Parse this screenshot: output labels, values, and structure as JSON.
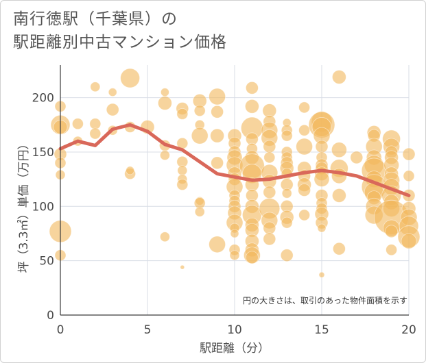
{
  "title": {
    "line1": "南行徳駅（千葉県）の",
    "line2": "駅距離別中古マンション価格"
  },
  "chart_data": {
    "type": "scatter",
    "xlabel": "駅距離（分）",
    "ylabel": "坪（3.3㎡）単価（万円）",
    "xlim": [
      0,
      20
    ],
    "ylim": [
      0,
      230
    ],
    "xticks": [
      "0",
      "5",
      "10",
      "15",
      "20"
    ],
    "yticks": [
      "0",
      "50",
      "100",
      "150",
      "200"
    ],
    "xtick_values": [
      0,
      5,
      10,
      15,
      20
    ],
    "ytick_values": [
      0,
      50,
      100,
      150,
      200
    ],
    "grid": true,
    "note": "円の大きさは、取引のあった物件面積を示す",
    "colors": {
      "bubble": "#f2b75b",
      "line": "#d9685a",
      "grid": "#d8dde6",
      "axis": "#3a3a3a"
    },
    "series": [
      {
        "type": "line",
        "x": [
          0,
          1,
          2,
          3,
          4,
          5,
          6,
          7,
          8,
          9,
          10,
          11,
          12,
          13,
          14,
          15,
          16,
          17,
          18,
          19,
          20
        ],
        "values": [
          153,
          160,
          156,
          171,
          175,
          169,
          157,
          152,
          141,
          130,
          127,
          124,
          125,
          128,
          131,
          133,
          131,
          128,
          122,
          116,
          110
        ]
      },
      {
        "type": "bubble",
        "points": [
          [
            0,
            192,
            8
          ],
          [
            0,
            175,
            14
          ],
          [
            0,
            173,
            10
          ],
          [
            0,
            148,
            9
          ],
          [
            0,
            140,
            8
          ],
          [
            0,
            129,
            7
          ],
          [
            0,
            77,
            16
          ],
          [
            0,
            55,
            8
          ],
          [
            1,
            176,
            8
          ],
          [
            1,
            160,
            7
          ],
          [
            2,
            210,
            7
          ],
          [
            2,
            176,
            8
          ],
          [
            2,
            167,
            8
          ],
          [
            3,
            205,
            6
          ],
          [
            3,
            189,
            9
          ],
          [
            3,
            170,
            7
          ],
          [
            4,
            218,
            14
          ],
          [
            4,
            173,
            8
          ],
          [
            4,
            130,
            8
          ],
          [
            4,
            133,
            6
          ],
          [
            5,
            173,
            10
          ],
          [
            6,
            205,
            6
          ],
          [
            6,
            195,
            10
          ],
          [
            6,
            156,
            8
          ],
          [
            6,
            147,
            7
          ],
          [
            6,
            72,
            7
          ],
          [
            7,
            190,
            9
          ],
          [
            7,
            185,
            8
          ],
          [
            7,
            158,
            8
          ],
          [
            7,
            141,
            8
          ],
          [
            7,
            133,
            7
          ],
          [
            7,
            125,
            7
          ],
          [
            7,
            120,
            8
          ],
          [
            7,
            44,
            3
          ],
          [
            8,
            197,
            10
          ],
          [
            8,
            188,
            8
          ],
          [
            8,
            175,
            7
          ],
          [
            8,
            165,
            12
          ],
          [
            8,
            105,
            6
          ],
          [
            8,
            103,
            8
          ],
          [
            8,
            95,
            7
          ],
          [
            9,
            201,
            12
          ],
          [
            9,
            187,
            9
          ],
          [
            9,
            165,
            10
          ],
          [
            9,
            140,
            9
          ],
          [
            9,
            65,
            12
          ],
          [
            10,
            165,
            10
          ],
          [
            10,
            158,
            9
          ],
          [
            10,
            150,
            9
          ],
          [
            10,
            145,
            11
          ],
          [
            10,
            138,
            12
          ],
          [
            10,
            130,
            10
          ],
          [
            10,
            125,
            9
          ],
          [
            10,
            118,
            12
          ],
          [
            10,
            110,
            8
          ],
          [
            10,
            105,
            8
          ],
          [
            10,
            100,
            9
          ],
          [
            10,
            94,
            10
          ],
          [
            10,
            85,
            12
          ],
          [
            10,
            80,
            7
          ],
          [
            10,
            75,
            6
          ],
          [
            10,
            60,
            8
          ],
          [
            10,
            55,
            7
          ],
          [
            11,
            209,
            9
          ],
          [
            11,
            192,
            10
          ],
          [
            11,
            172,
            16
          ],
          [
            11,
            162,
            9
          ],
          [
            11,
            153,
            8
          ],
          [
            11,
            145,
            10
          ],
          [
            11,
            137,
            18
          ],
          [
            11,
            130,
            14
          ],
          [
            11,
            120,
            10
          ],
          [
            11,
            110,
            9
          ],
          [
            11,
            100,
            10
          ],
          [
            11,
            92,
            14
          ],
          [
            11,
            83,
            10
          ],
          [
            11,
            78,
            10
          ],
          [
            11,
            68,
            10
          ],
          [
            11,
            60,
            10
          ],
          [
            11,
            55,
            12
          ],
          [
            11,
            53,
            9
          ],
          [
            12,
            188,
            10
          ],
          [
            12,
            178,
            9
          ],
          [
            12,
            170,
            12
          ],
          [
            12,
            163,
            12
          ],
          [
            12,
            155,
            9
          ],
          [
            12,
            145,
            8
          ],
          [
            12,
            131,
            12
          ],
          [
            12,
            123,
            10
          ],
          [
            12,
            113,
            9
          ],
          [
            12,
            98,
            15
          ],
          [
            12,
            87,
            12
          ],
          [
            12,
            80,
            9
          ],
          [
            12,
            70,
            9
          ],
          [
            13,
            177,
            6
          ],
          [
            13,
            170,
            8
          ],
          [
            13,
            165,
            8
          ],
          [
            13,
            150,
            8
          ],
          [
            13,
            145,
            8
          ],
          [
            13,
            140,
            9
          ],
          [
            13,
            135,
            10
          ],
          [
            13,
            130,
            8
          ],
          [
            13,
            120,
            9
          ],
          [
            13,
            112,
            7
          ],
          [
            13,
            100,
            9
          ],
          [
            13,
            90,
            10
          ],
          [
            13,
            85,
            8
          ],
          [
            13,
            55,
            9
          ],
          [
            14,
            191,
            8
          ],
          [
            14,
            170,
            8
          ],
          [
            14,
            155,
            12
          ],
          [
            14,
            135,
            10
          ],
          [
            14,
            128,
            9
          ],
          [
            14,
            120,
            10
          ],
          [
            14,
            115,
            9
          ],
          [
            14,
            92,
            8
          ],
          [
            15,
            178,
            15
          ],
          [
            15,
            175,
            19
          ],
          [
            15,
            173,
            14
          ],
          [
            15,
            165,
            12
          ],
          [
            15,
            155,
            9
          ],
          [
            15,
            145,
            8
          ],
          [
            15,
            138,
            9
          ],
          [
            15,
            135,
            9
          ],
          [
            15,
            130,
            10
          ],
          [
            15,
            125,
            11
          ],
          [
            15,
            110,
            9
          ],
          [
            15,
            103,
            8
          ],
          [
            15,
            98,
            8
          ],
          [
            15,
            93,
            10
          ],
          [
            15,
            85,
            9
          ],
          [
            15,
            80,
            6
          ],
          [
            15,
            37,
            4
          ],
          [
            16,
            219,
            10
          ],
          [
            16,
            152,
            11
          ],
          [
            16,
            135,
            13
          ],
          [
            16,
            128,
            11
          ],
          [
            16,
            110,
            10
          ],
          [
            16,
            61,
            9
          ],
          [
            17,
            145,
            9
          ],
          [
            18,
            168,
            10
          ],
          [
            18,
            165,
            9
          ],
          [
            18,
            155,
            12
          ],
          [
            18,
            145,
            11
          ],
          [
            18,
            138,
            14
          ],
          [
            18,
            133,
            18
          ],
          [
            18,
            125,
            12
          ],
          [
            18,
            118,
            18
          ],
          [
            18,
            113,
            14
          ],
          [
            18,
            108,
            10
          ],
          [
            18,
            100,
            12
          ],
          [
            18,
            92,
            13
          ],
          [
            19,
            162,
            13
          ],
          [
            19,
            155,
            12
          ],
          [
            19,
            150,
            9
          ],
          [
            19,
            145,
            10
          ],
          [
            19,
            138,
            11
          ],
          [
            19,
            130,
            10
          ],
          [
            19,
            124,
            12
          ],
          [
            19,
            118,
            12
          ],
          [
            19,
            110,
            14
          ],
          [
            19,
            104,
            11
          ],
          [
            19,
            98,
            12
          ],
          [
            19,
            90,
            25
          ],
          [
            19,
            80,
            12
          ],
          [
            19,
            77,
            9
          ],
          [
            19,
            60,
            8
          ],
          [
            20,
            148,
            9
          ],
          [
            20,
            128,
            8
          ],
          [
            20,
            110,
            9
          ],
          [
            20,
            98,
            10
          ],
          [
            20,
            90,
            12
          ],
          [
            20,
            82,
            14
          ],
          [
            20,
            72,
            16
          ],
          [
            20,
            68,
            11
          ]
        ]
      }
    ]
  }
}
